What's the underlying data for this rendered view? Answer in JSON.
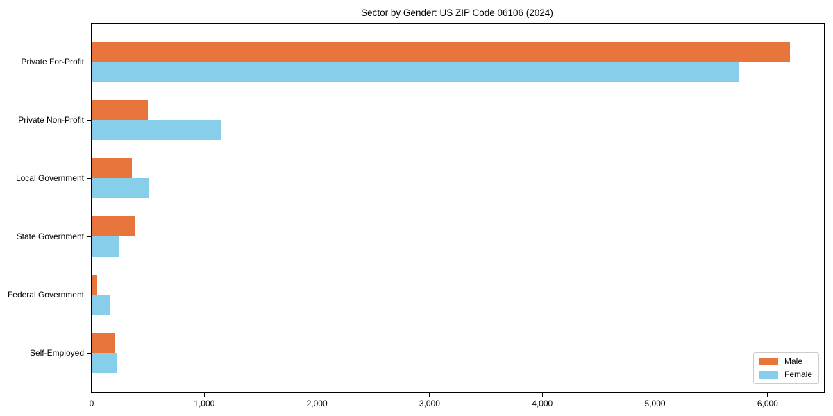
{
  "title": "Sector by Gender: US ZIP Code 06106 (2024)",
  "colors": {
    "male": "#e8763c",
    "female": "#87ceeb",
    "axis": "#000000",
    "legend_border": "#cccccc",
    "background": "#ffffff"
  },
  "legend": {
    "position": "lower right",
    "items": [
      {
        "label": "Male",
        "color": "#e8763c"
      },
      {
        "label": "Female",
        "color": "#87ceeb"
      }
    ]
  },
  "chart_data": {
    "type": "bar",
    "orientation": "horizontal",
    "title": "Sector by Gender: US ZIP Code 06106 (2024)",
    "categories": [
      "Private For-Profit",
      "Private Non-Profit",
      "Local Government",
      "State Government",
      "Federal Government",
      "Self-Employed"
    ],
    "series": [
      {
        "name": "Male",
        "color": "#e8763c",
        "values": [
          6200,
          500,
          360,
          380,
          50,
          210
        ]
      },
      {
        "name": "Female",
        "color": "#87ceeb",
        "values": [
          5740,
          1150,
          510,
          240,
          160,
          230
        ]
      }
    ],
    "xlabel": "",
    "ylabel": "",
    "xlim": [
      0,
      6500
    ],
    "x_ticks": [
      0,
      1000,
      2000,
      3000,
      4000,
      5000,
      6000
    ],
    "x_tick_labels": [
      "0",
      "1,000",
      "2,000",
      "3,000",
      "4,000",
      "5,000",
      "6,000"
    ],
    "grid": false,
    "legend_position": "lower right"
  }
}
